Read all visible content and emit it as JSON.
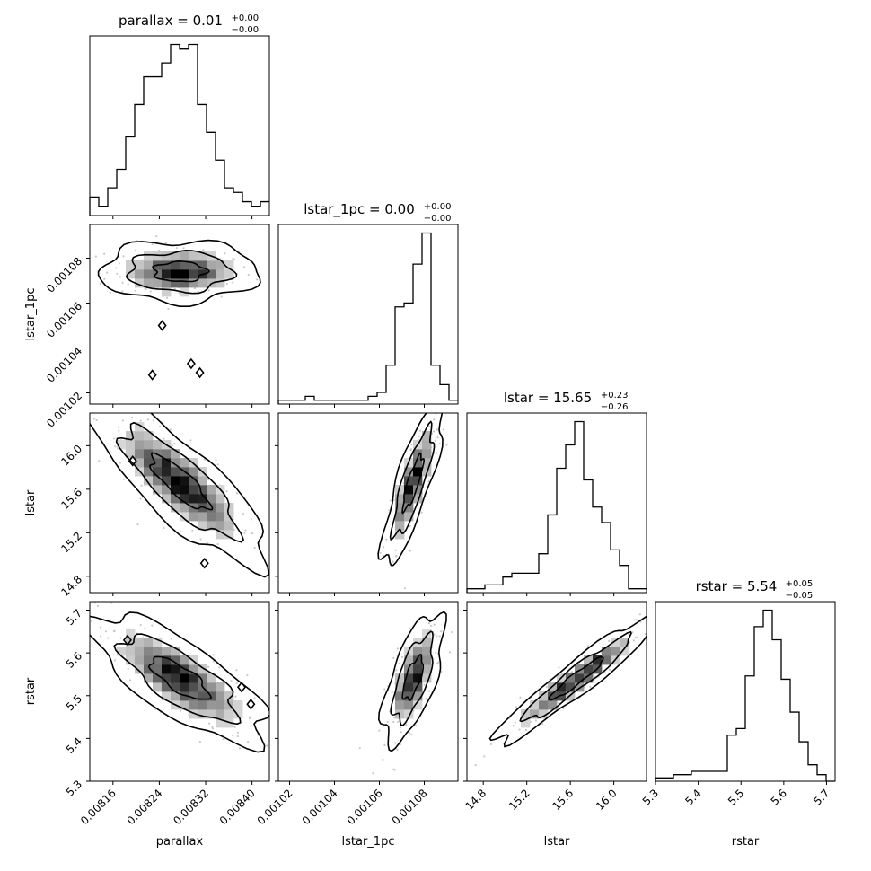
{
  "chart_data": {
    "type": "corner",
    "parameters": [
      "parallax",
      "lstar_1pc",
      "lstar",
      "rstar"
    ],
    "ranges": {
      "parallax": [
        0.00812,
        0.00843
      ],
      "lstar_1pc": [
        0.001015,
        0.001095
      ],
      "lstar": [
        14.65,
        16.3
      ],
      "rstar": [
        5.3,
        5.72
      ]
    },
    "ticks": {
      "parallax": [
        0.00816,
        0.00824,
        0.00832,
        0.0084
      ],
      "lstar_1pc": [
        0.00102,
        0.00104,
        0.00106,
        0.00108
      ],
      "lstar": [
        14.8,
        15.2,
        15.6,
        16.0
      ],
      "rstar": [
        5.3,
        5.4,
        5.5,
        5.6,
        5.7
      ]
    },
    "tick_labels": {
      "parallax": [
        "0.00816",
        "0.00824",
        "0.00832",
        "0.00840"
      ],
      "lstar_1pc": [
        "0.00102",
        "0.00104",
        "0.00106",
        "0.00108"
      ],
      "lstar": [
        "14.8",
        "15.2",
        "15.6",
        "16.0"
      ],
      "rstar": [
        "5.3",
        "5.4",
        "5.5",
        "5.6",
        "5.7"
      ]
    },
    "titles": [
      {
        "param": "parallax",
        "text": "parallax = 0.01",
        "plus": "+0.00",
        "minus": "−0.00"
      },
      {
        "param": "lstar_1pc",
        "text": "lstar_1pc = 0.00",
        "plus": "+0.00",
        "minus": "−0.00"
      },
      {
        "param": "lstar",
        "text": "lstar = 15.65",
        "plus": "+0.23",
        "minus": "−0.26"
      },
      {
        "param": "rstar",
        "text": "rstar = 5.54",
        "plus": "+0.05",
        "minus": "−0.05"
      }
    ],
    "histograms": {
      "parallax": [
        4,
        2,
        6,
        10,
        17,
        24,
        30,
        30,
        33,
        37,
        36,
        37,
        24,
        18,
        12,
        6,
        5,
        3,
        2,
        3
      ],
      "lstar_1pc": [
        1,
        1,
        1,
        2,
        1,
        1,
        1,
        1,
        1,
        1,
        2,
        3,
        10,
        25,
        26,
        36,
        44,
        10,
        5,
        1
      ],
      "lstar": [
        1,
        1,
        2,
        2,
        4,
        5,
        5,
        5,
        10,
        20,
        32,
        38,
        44,
        29,
        22,
        18,
        11,
        7,
        1,
        1
      ],
      "rstar": [
        1,
        1,
        2,
        2,
        3,
        3,
        3,
        3,
        14,
        16,
        32,
        47,
        52,
        43,
        31,
        21,
        12,
        5,
        2,
        0
      ]
    },
    "correlations": {
      "lstar_1pc|parallax": {
        "cx": 0.008275,
        "cy": 0.001074,
        "sx": 4.5e-05,
        "sy": 4.5e-06,
        "rho": 0.0
      },
      "lstar|parallax": {
        "cx": 0.008275,
        "cy": 15.66,
        "sx": 5e-05,
        "sy": 0.25,
        "rho": -0.82
      },
      "lstar|lstar_1pc": {
        "cx": 0.001075,
        "cy": 15.66,
        "sx": 4.5e-06,
        "sy": 0.25,
        "rho": 0.82
      },
      "rstar|parallax": {
        "cx": 0.008275,
        "cy": 5.54,
        "sx": 5e-05,
        "sy": 0.05,
        "rho": -0.75
      },
      "rstar|lstar_1pc": {
        "cx": 0.001075,
        "cy": 5.54,
        "sx": 4.5e-06,
        "sy": 0.05,
        "rho": 0.65
      },
      "rstar|lstar": {
        "cx": 15.66,
        "cy": 5.54,
        "sx": 0.25,
        "sy": 0.05,
        "rho": 0.95
      }
    },
    "outliers": {
      "lstar_1pc|parallax": [
        [
          0.008245,
          0.00105
        ],
        [
          0.008228,
          0.001028
        ],
        [
          0.008295,
          0.001033
        ],
        [
          0.00831,
          0.001029
        ]
      ],
      "lstar|parallax": [
        [
          0.008318,
          14.92
        ],
        [
          0.008194,
          15.86
        ]
      ],
      "rstar|parallax": [
        [
          0.008382,
          5.52
        ],
        [
          0.008398,
          5.48
        ],
        [
          0.008185,
          5.63
        ]
      ]
    },
    "grid": false,
    "legend": "none"
  },
  "colors": {
    "line": "#000000",
    "scatter": "#c8c8c8",
    "fill_light": "#f0f0f0",
    "fill_mid": "#b0b0b0",
    "fill_dark": "#404040"
  }
}
